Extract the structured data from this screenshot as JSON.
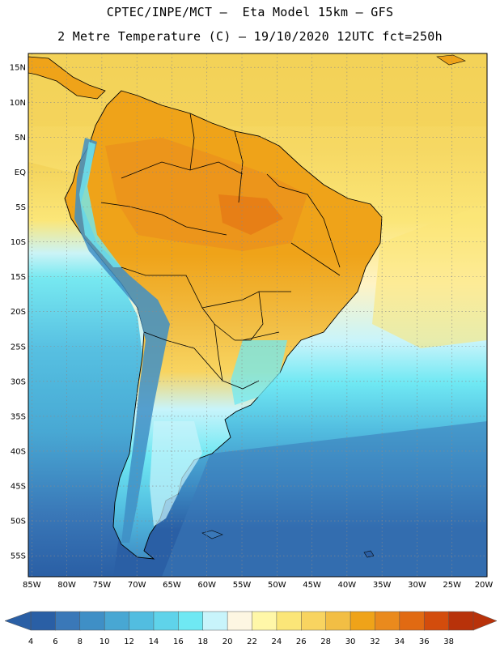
{
  "header": {
    "line1": "CPTEC/INPE/MCT –  Eta Model 15km – GFS",
    "line2": "2 Metre Temperature (C) – 19/10/2020 12UTC fct=250h"
  },
  "map": {
    "lat_labels": [
      "15N",
      "10N",
      "5N",
      "EQ",
      "5S",
      "10S",
      "15S",
      "20S",
      "25S",
      "30S",
      "35S",
      "40S",
      "45S",
      "50S",
      "55S"
    ],
    "lon_labels": [
      "85W",
      "80W",
      "75W",
      "70W",
      "65W",
      "60W",
      "55W",
      "50W",
      "45W",
      "40W",
      "35W",
      "30W",
      "25W",
      "20W"
    ],
    "lat_range": [
      17,
      -58
    ],
    "lon_range": [
      -85.5,
      -20
    ],
    "gridlines": true
  },
  "colorbar": {
    "ticks": [
      "4",
      "6",
      "8",
      "10",
      "12",
      "14",
      "16",
      "18",
      "20",
      "22",
      "24",
      "26",
      "28",
      "30",
      "32",
      "34",
      "36",
      "38"
    ],
    "colors": [
      "#2a5fa5",
      "#3a78b8",
      "#3f8fc6",
      "#48a7d3",
      "#52bde0",
      "#5fd3ea",
      "#6fe8f3",
      "#c8f4fb",
      "#fdf6e2",
      "#fff7a8",
      "#fbe678",
      "#f8d460",
      "#f2be44",
      "#efa319",
      "#ea8a1d",
      "#e16a12",
      "#d34c0c",
      "#b8320a"
    ],
    "low_color": "#2a5fa5",
    "high_color": "#b8320a"
  },
  "palette": {
    "ocean_warm": "#f3d258",
    "ocean_mid": "#fbe678",
    "ocean_cool": "#5fd3ea",
    "ocean_cold": "#48a7d3",
    "ocean_coldest": "#2a5fa5",
    "land_hot": "#efa319",
    "land_warm": "#f2be44",
    "andes_cold": "#3f8fc6",
    "border": "#000000"
  }
}
